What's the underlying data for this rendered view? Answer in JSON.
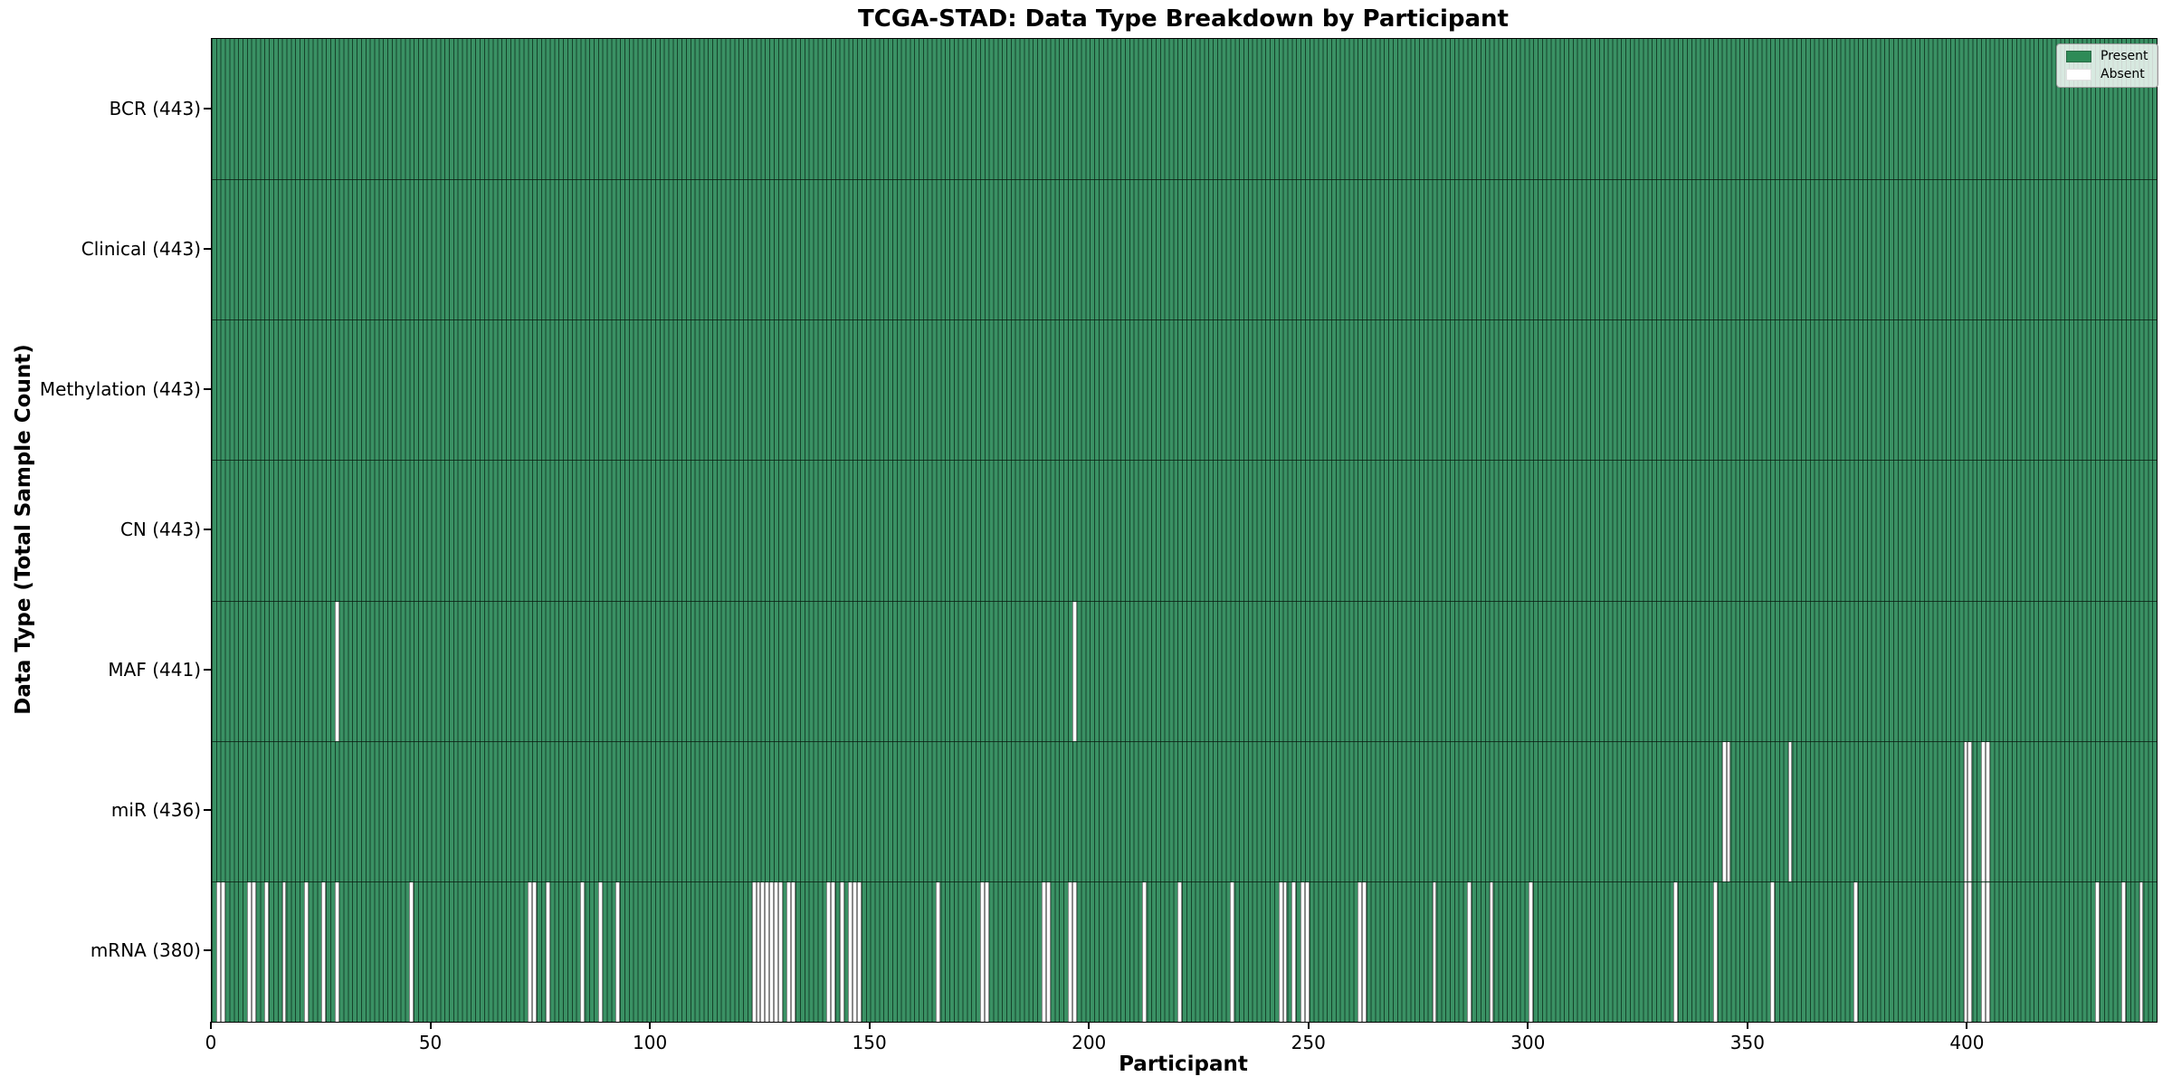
{
  "title": "TCGA-STAD: Data Type Breakdown by Participant",
  "axes": {
    "xlabel": "Participant",
    "ylabel": "Data Type (Total Sample Count)"
  },
  "legend": {
    "present_label": "Present",
    "absent_label": "Absent"
  },
  "colors": {
    "present_fill": "#3a9164",
    "present_legend_swatch": "#2E8B57",
    "absent": "#ffffff",
    "bar_edge": "#16432b",
    "axis": "#000000"
  },
  "chart_data": {
    "type": "heatmap",
    "title": "TCGA-STAD: Data Type Breakdown by Participant",
    "xlabel": "Participant",
    "ylabel": "Data Type (Total Sample Count)",
    "xlim": [
      0,
      443
    ],
    "x_ticks": [
      0,
      50,
      100,
      150,
      200,
      250,
      300,
      350,
      400
    ],
    "n_participants": 443,
    "grid": false,
    "legend_position": "upper right",
    "legend_entries": [
      {
        "label": "Present",
        "color": "#2E8B57"
      },
      {
        "label": "Absent",
        "color": "#FFFFFF"
      }
    ],
    "rows": [
      {
        "label": "BCR (443)",
        "data_type": "BCR",
        "total": 443,
        "absent_participants": []
      },
      {
        "label": "Clinical (443)",
        "data_type": "Clinical",
        "total": 443,
        "absent_participants": []
      },
      {
        "label": "Methylation (443)",
        "data_type": "Methylation",
        "total": 443,
        "absent_participants": []
      },
      {
        "label": "CN (443)",
        "data_type": "CN",
        "total": 443,
        "absent_participants": []
      },
      {
        "label": "MAF (441)",
        "data_type": "MAF",
        "total": 441,
        "absent_participants": [
          28,
          196
        ]
      },
      {
        "label": "miR (436)",
        "data_type": "miR",
        "total": 436,
        "absent_participants": [
          344,
          345,
          359,
          399,
          400,
          403,
          404
        ]
      },
      {
        "label": "mRNA (380)",
        "data_type": "mRNA",
        "total": 380,
        "absent_participants": [
          1,
          2,
          8,
          9,
          12,
          16,
          21,
          25,
          28,
          45,
          72,
          73,
          76,
          84,
          88,
          92,
          123,
          124,
          125,
          126,
          127,
          128,
          129,
          131,
          132,
          140,
          141,
          143,
          145,
          146,
          147,
          165,
          175,
          176,
          189,
          190,
          195,
          196,
          212,
          220,
          232,
          243,
          244,
          246,
          248,
          249,
          261,
          262,
          278,
          286,
          291,
          300,
          333,
          342,
          355,
          374,
          399,
          400,
          403,
          404,
          429,
          435,
          439
        ]
      }
    ]
  }
}
